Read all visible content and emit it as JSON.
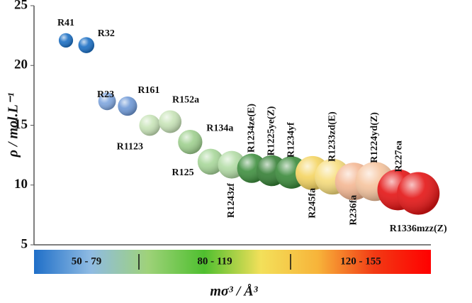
{
  "chart_data": {
    "type": "scatter",
    "y_label": "ρ / mol.L⁻¹",
    "x_label": "mσ³ / Å³",
    "ylim": [
      5,
      25
    ],
    "yticks": [
      5,
      10,
      15,
      20,
      25
    ],
    "xlim": [
      49,
      156
    ],
    "names": [
      "R41",
      "R32",
      "R23",
      "R161",
      "R1123",
      "R152a",
      "R134a",
      "R125",
      "R1243zf",
      "R1234ze(E)",
      "R1225ye(Z)",
      "R1234yf",
      "R245fa",
      "R1233zd(E)",
      "R236fa",
      "R1224yd(Z)",
      "R227ea",
      "R1336mzz(Z)"
    ],
    "x": [
      57.6,
      63.1,
      68.7,
      74.2,
      80.2,
      85.7,
      91.1,
      96.6,
      102.3,
      107.7,
      113.1,
      118.4,
      124.1,
      129.5,
      135.2,
      140.9,
      147.1,
      152.6
    ],
    "y": [
      22.1,
      21.7,
      17.0,
      16.6,
      15.0,
      15.3,
      13.6,
      11.95,
      11.7,
      11.4,
      11.2,
      11.05,
      11.0,
      10.7,
      10.3,
      10.3,
      9.6,
      9.3
    ],
    "colors": [
      "#1b6fc4",
      "#1b6fc4",
      "#7fa6df",
      "#6e98d6",
      "#c8e4b8",
      "#c8e4b8",
      "#9fd08f",
      "#a8d79a",
      "#b3dca6",
      "#3f8f3f",
      "#357f35",
      "#3a8a3a",
      "#f4d461",
      "#f7dd7c",
      "#f4b793",
      "#f6c49e",
      "#e41414",
      "#e41414"
    ],
    "colorbar": {
      "labels": [
        "50 - 79",
        "80 - 119",
        "120 - 155"
      ],
      "colors": [
        "#1f6fc8",
        "#8fbbe3",
        "#9fd27a",
        "#4fbf2f",
        "#f3e05a",
        "#f7b43a",
        "#f23a14",
        "#ff0000"
      ]
    }
  }
}
